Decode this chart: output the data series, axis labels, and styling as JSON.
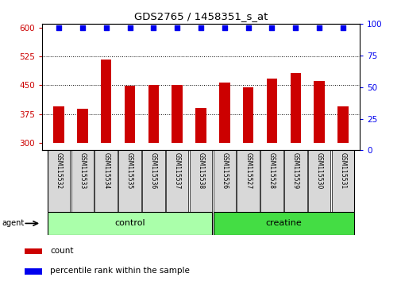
{
  "title": "GDS2765 / 1458351_s_at",
  "samples": [
    "GSM115532",
    "GSM115533",
    "GSM115534",
    "GSM115535",
    "GSM115536",
    "GSM115537",
    "GSM115538",
    "GSM115526",
    "GSM115527",
    "GSM115528",
    "GSM115529",
    "GSM115530",
    "GSM115531"
  ],
  "counts": [
    395,
    388,
    518,
    449,
    451,
    451,
    390,
    457,
    445,
    468,
    482,
    460,
    395
  ],
  "percentiles": [
    97,
    97,
    97,
    97,
    97,
    97,
    97,
    97,
    97,
    97,
    97,
    97,
    97
  ],
  "bar_color": "#CC0000",
  "dot_color": "#0000EE",
  "ylim_left": [
    280,
    610
  ],
  "ylim_right": [
    0,
    100
  ],
  "yticks_left": [
    300,
    375,
    450,
    525,
    600
  ],
  "yticks_right": [
    0,
    25,
    50,
    75,
    100
  ],
  "grid_yticks": [
    375,
    450,
    525
  ],
  "bar_bottom": 300,
  "control_color": "#AAFFAA",
  "creatine_color": "#44DD44",
  "legend_items": [
    {
      "label": "count",
      "color": "#CC0000"
    },
    {
      "label": "percentile rank within the sample",
      "color": "#0000EE"
    }
  ]
}
